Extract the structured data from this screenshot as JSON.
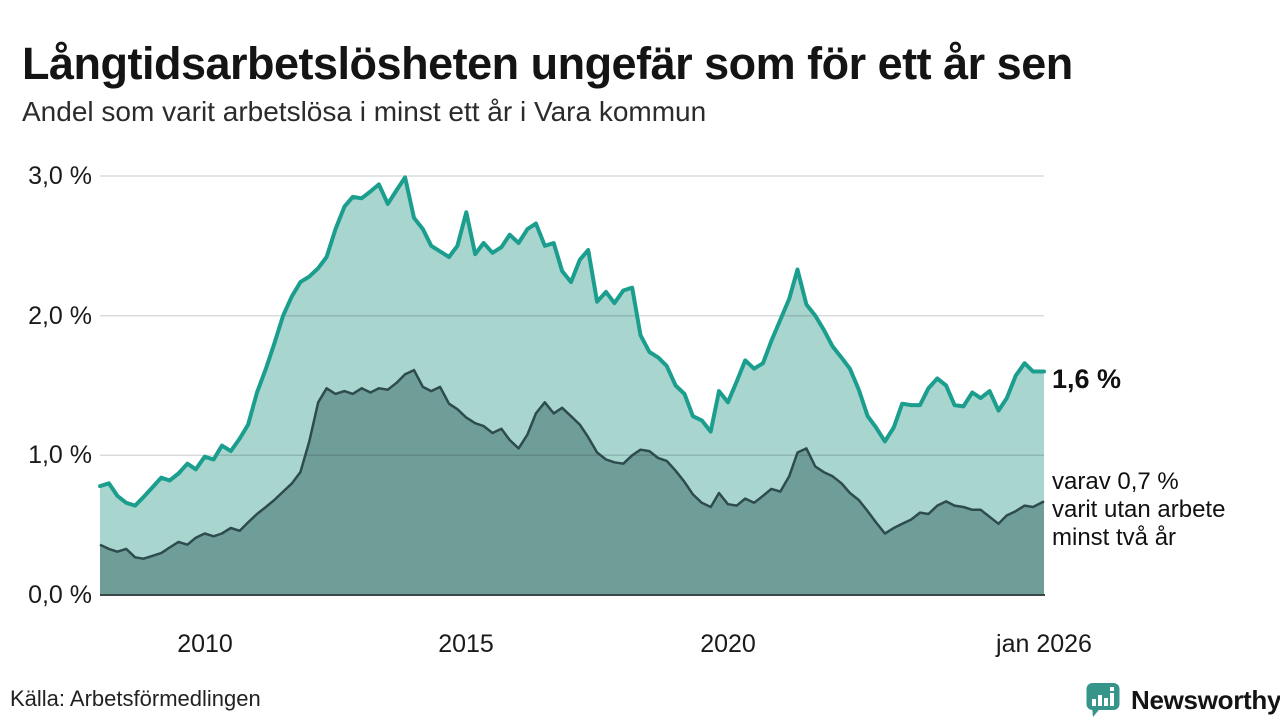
{
  "header": {
    "title": "Långtidsarbetslösheten ungefär som för ett år sen",
    "subtitle": "Andel som varit arbetslösa i minst ett år i Vara kommun"
  },
  "footer": {
    "source": "Källa: Arbetsförmedlingen",
    "brand": "Newsworthy"
  },
  "colors": {
    "accent_teal": "#1b9e8e",
    "light_fill": "#a9d5cf",
    "dark_fill": "#6f9d98",
    "dark_line": "#2e4b4d",
    "baseline": "#3c4747",
    "gridline": "#d9d9d9",
    "brand_teal": "#36948b",
    "text": "#141414"
  },
  "chart_data": {
    "type": "area",
    "title": "Långtidsarbetslösheten ungefär som för ett år sen",
    "subtitle": "Andel som varit arbetslösa i minst ett år i Vara kommun",
    "xlabel": "",
    "ylabel": "",
    "legend": "none",
    "grid": "horizontal",
    "xlim": [
      2008.0,
      2026.04
    ],
    "ylim": [
      0,
      3.0
    ],
    "x_unit": "decimal_year",
    "y_unit": "percent",
    "x_ticks": [
      {
        "label": "2010",
        "x": 2010
      },
      {
        "label": "2015",
        "x": 2015
      },
      {
        "label": "2020",
        "x": 2020
      },
      {
        "label": "jan 2026",
        "x": 2026.04
      }
    ],
    "y_ticks": [
      {
        "label": "0,0 %",
        "v": 0
      },
      {
        "label": "1,0 %",
        "v": 1
      },
      {
        "label": "2,0 %",
        "v": 2
      },
      {
        "label": "3,0 %",
        "v": 3
      }
    ],
    "series": [
      {
        "name": "arbetslösa minst ett år",
        "color": "#1b9e8e",
        "fill": "#a9d5cf",
        "value_index": 1,
        "latest_value_pct": 1.6
      },
      {
        "name": "varav arbetslösa minst två år",
        "color": "#2e4b4d",
        "fill": "#6f9d98",
        "value_index": 2,
        "latest_value_pct": 0.7
      }
    ],
    "annotations": {
      "latest_value": "1,6 %",
      "secondary_lines": [
        "varav 0,7 %",
        "varit utan arbete",
        "minst två år"
      ]
    },
    "points": [
      [
        2008.0,
        0.78,
        0.36
      ],
      [
        2008.17,
        0.8,
        0.33
      ],
      [
        2008.33,
        0.71,
        0.31
      ],
      [
        2008.5,
        0.66,
        0.33
      ],
      [
        2008.67,
        0.64,
        0.27
      ],
      [
        2008.83,
        0.7,
        0.26
      ],
      [
        2009.0,
        0.77,
        0.28
      ],
      [
        2009.17,
        0.84,
        0.3
      ],
      [
        2009.33,
        0.82,
        0.34
      ],
      [
        2009.5,
        0.87,
        0.38
      ],
      [
        2009.67,
        0.94,
        0.36
      ],
      [
        2009.83,
        0.9,
        0.41
      ],
      [
        2010.0,
        0.99,
        0.44
      ],
      [
        2010.17,
        0.97,
        0.42
      ],
      [
        2010.33,
        1.07,
        0.44
      ],
      [
        2010.5,
        1.03,
        0.48
      ],
      [
        2010.67,
        1.12,
        0.46
      ],
      [
        2010.83,
        1.22,
        0.52
      ],
      [
        2011.0,
        1.45,
        0.58
      ],
      [
        2011.17,
        1.62,
        0.63
      ],
      [
        2011.33,
        1.8,
        0.68
      ],
      [
        2011.5,
        2.0,
        0.74
      ],
      [
        2011.67,
        2.14,
        0.8
      ],
      [
        2011.83,
        2.24,
        0.88
      ],
      [
        2012.0,
        2.28,
        1.1
      ],
      [
        2012.17,
        2.34,
        1.38
      ],
      [
        2012.33,
        2.42,
        1.48
      ],
      [
        2012.5,
        2.62,
        1.44
      ],
      [
        2012.67,
        2.78,
        1.46
      ],
      [
        2012.83,
        2.85,
        1.44
      ],
      [
        2013.0,
        2.84,
        1.48
      ],
      [
        2013.17,
        2.89,
        1.45
      ],
      [
        2013.33,
        2.94,
        1.48
      ],
      [
        2013.5,
        2.8,
        1.47
      ],
      [
        2013.67,
        2.9,
        1.52
      ],
      [
        2013.83,
        2.99,
        1.58
      ],
      [
        2014.0,
        2.7,
        1.61
      ],
      [
        2014.17,
        2.62,
        1.49
      ],
      [
        2014.33,
        2.5,
        1.46
      ],
      [
        2014.5,
        2.46,
        1.49
      ],
      [
        2014.67,
        2.42,
        1.37
      ],
      [
        2014.83,
        2.5,
        1.33
      ],
      [
        2015.0,
        2.74,
        1.27
      ],
      [
        2015.17,
        2.44,
        1.23
      ],
      [
        2015.33,
        2.52,
        1.21
      ],
      [
        2015.5,
        2.45,
        1.16
      ],
      [
        2015.67,
        2.49,
        1.19
      ],
      [
        2015.83,
        2.58,
        1.11
      ],
      [
        2016.0,
        2.52,
        1.05
      ],
      [
        2016.17,
        2.62,
        1.15
      ],
      [
        2016.33,
        2.66,
        1.3
      ],
      [
        2016.5,
        2.5,
        1.38
      ],
      [
        2016.67,
        2.52,
        1.3
      ],
      [
        2016.83,
        2.32,
        1.34
      ],
      [
        2017.0,
        2.24,
        1.28
      ],
      [
        2017.17,
        2.4,
        1.22
      ],
      [
        2017.33,
        2.47,
        1.13
      ],
      [
        2017.5,
        2.1,
        1.02
      ],
      [
        2017.67,
        2.17,
        0.97
      ],
      [
        2017.83,
        2.09,
        0.95
      ],
      [
        2018.0,
        2.18,
        0.94
      ],
      [
        2018.17,
        2.2,
        1.0
      ],
      [
        2018.33,
        1.86,
        1.04
      ],
      [
        2018.5,
        1.74,
        1.03
      ],
      [
        2018.67,
        1.7,
        0.98
      ],
      [
        2018.83,
        1.64,
        0.96
      ],
      [
        2019.0,
        1.5,
        0.89
      ],
      [
        2019.17,
        1.44,
        0.81
      ],
      [
        2019.33,
        1.28,
        0.72
      ],
      [
        2019.5,
        1.25,
        0.66
      ],
      [
        2019.67,
        1.17,
        0.63
      ],
      [
        2019.83,
        1.46,
        0.73
      ],
      [
        2020.0,
        1.38,
        0.65
      ],
      [
        2020.17,
        1.53,
        0.64
      ],
      [
        2020.33,
        1.68,
        0.69
      ],
      [
        2020.5,
        1.62,
        0.66
      ],
      [
        2020.67,
        1.66,
        0.71
      ],
      [
        2020.83,
        1.82,
        0.76
      ],
      [
        2021.0,
        1.97,
        0.74
      ],
      [
        2021.17,
        2.12,
        0.85
      ],
      [
        2021.33,
        2.33,
        1.02
      ],
      [
        2021.5,
        2.08,
        1.05
      ],
      [
        2021.67,
        2.0,
        0.92
      ],
      [
        2021.83,
        1.9,
        0.88
      ],
      [
        2022.0,
        1.78,
        0.85
      ],
      [
        2022.17,
        1.7,
        0.8
      ],
      [
        2022.33,
        1.62,
        0.73
      ],
      [
        2022.5,
        1.47,
        0.68
      ],
      [
        2022.67,
        1.28,
        0.6
      ],
      [
        2022.83,
        1.2,
        0.52
      ],
      [
        2023.0,
        1.1,
        0.44
      ],
      [
        2023.17,
        1.2,
        0.48
      ],
      [
        2023.33,
        1.37,
        0.51
      ],
      [
        2023.5,
        1.36,
        0.54
      ],
      [
        2023.67,
        1.36,
        0.59
      ],
      [
        2023.83,
        1.48,
        0.58
      ],
      [
        2024.0,
        1.55,
        0.64
      ],
      [
        2024.17,
        1.5,
        0.67
      ],
      [
        2024.33,
        1.36,
        0.64
      ],
      [
        2024.5,
        1.35,
        0.63
      ],
      [
        2024.67,
        1.45,
        0.61
      ],
      [
        2024.83,
        1.41,
        0.61
      ],
      [
        2025.0,
        1.46,
        0.56
      ],
      [
        2025.17,
        1.32,
        0.51
      ],
      [
        2025.33,
        1.41,
        0.57
      ],
      [
        2025.5,
        1.57,
        0.6
      ],
      [
        2025.67,
        1.66,
        0.64
      ],
      [
        2025.83,
        1.6,
        0.63
      ],
      [
        2026.04,
        1.6,
        0.67
      ]
    ]
  }
}
